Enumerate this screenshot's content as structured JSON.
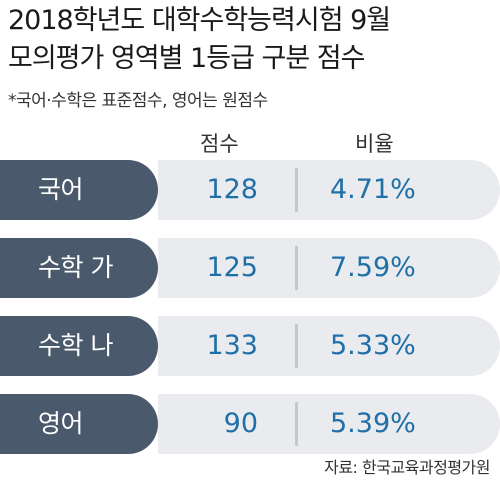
{
  "title": {
    "line1": "2018학년도 대학수학능력시험 9월",
    "line2": "모의평가 영역별 1등급 구분 점수"
  },
  "note": "*국어·수학은 표준점수, 영어는 원점수",
  "columns": {
    "score": "점수",
    "ratio": "비율"
  },
  "rows": [
    {
      "subject": "국어",
      "score": "128",
      "ratio": "4.71%"
    },
    {
      "subject": "수학 가",
      "score": "125",
      "ratio": "7.59%"
    },
    {
      "subject": "수학 나",
      "score": "133",
      "ratio": "5.33%"
    },
    {
      "subject": "영어",
      "score": "90",
      "ratio": "5.39%"
    }
  ],
  "source": "자료: 한국교육과정평가원",
  "colors": {
    "label_bg": "#4a5a6c",
    "value_bg": "#e9ebee",
    "value_text": "#1f6fa8"
  }
}
